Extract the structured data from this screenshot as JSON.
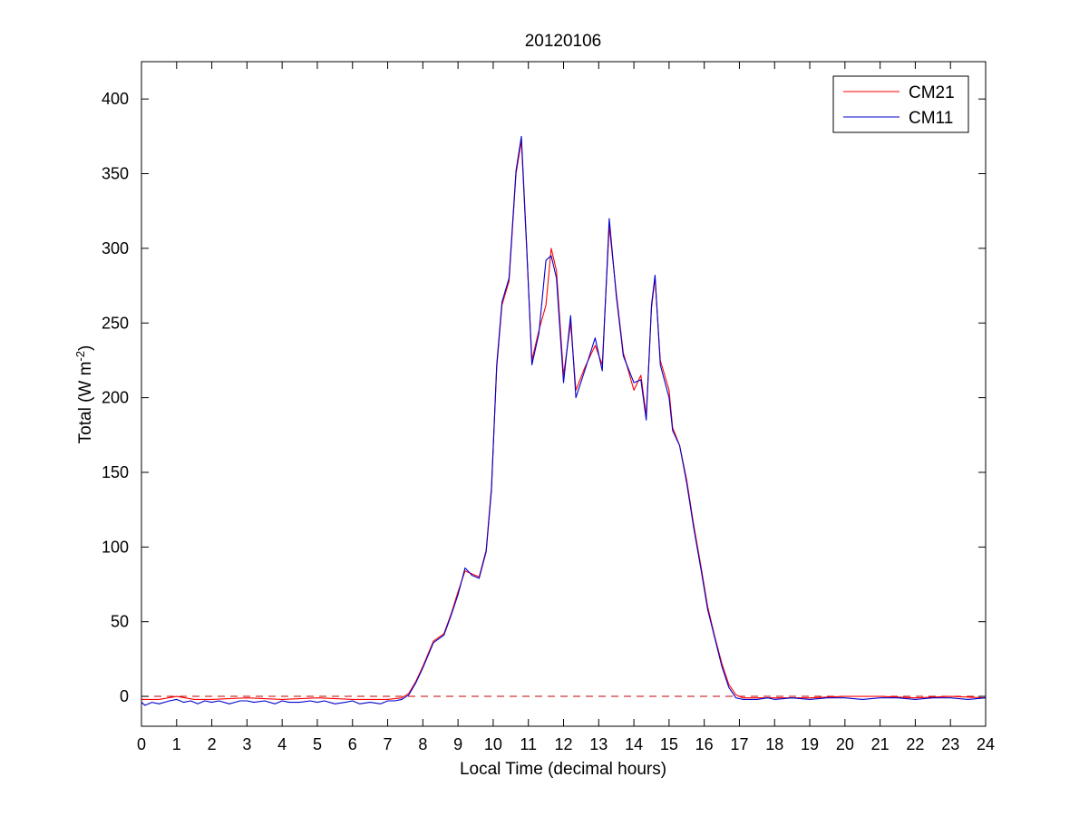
{
  "chart_data": {
    "type": "line",
    "title": "20120106",
    "xlabel": "Local Time (decimal hours)",
    "ylabel": {
      "text": "Total (W m",
      "sup": "-2",
      "close": ")"
    },
    "xlim": [
      0,
      24
    ],
    "ylim": [
      -20,
      425
    ],
    "xticks": [
      0,
      1,
      2,
      3,
      4,
      5,
      6,
      7,
      8,
      9,
      10,
      11,
      12,
      13,
      14,
      15,
      16,
      17,
      18,
      19,
      20,
      21,
      22,
      23,
      24
    ],
    "yticks": [
      0,
      50,
      100,
      150,
      200,
      250,
      300,
      350,
      400
    ],
    "grid": false,
    "legend_position": "top-right",
    "reference_line": {
      "y": 0,
      "style": "dashed",
      "color": "#c00000"
    },
    "series": [
      {
        "name": "CM21",
        "color": "#ff0000",
        "points": [
          [
            0,
            -2
          ],
          [
            0.5,
            -2
          ],
          [
            1,
            0
          ],
          [
            1.5,
            -2
          ],
          [
            2,
            -2
          ],
          [
            3,
            -1
          ],
          [
            4,
            -2
          ],
          [
            5,
            -1
          ],
          [
            6,
            -2
          ],
          [
            7,
            -2
          ],
          [
            7.4,
            -1
          ],
          [
            7.6,
            2
          ],
          [
            7.8,
            10
          ],
          [
            8,
            20
          ],
          [
            8.3,
            37
          ],
          [
            8.6,
            42
          ],
          [
            8.8,
            55
          ],
          [
            9,
            70
          ],
          [
            9.2,
            84
          ],
          [
            9.4,
            82
          ],
          [
            9.6,
            80
          ],
          [
            9.8,
            98
          ],
          [
            9.95,
            140
          ],
          [
            10.1,
            220
          ],
          [
            10.25,
            262
          ],
          [
            10.45,
            278
          ],
          [
            10.65,
            350
          ],
          [
            10.8,
            372
          ],
          [
            10.95,
            300
          ],
          [
            11.1,
            225
          ],
          [
            11.3,
            245
          ],
          [
            11.5,
            262
          ],
          [
            11.65,
            300
          ],
          [
            11.8,
            285
          ],
          [
            12,
            215
          ],
          [
            12.2,
            250
          ],
          [
            12.35,
            205
          ],
          [
            12.6,
            220
          ],
          [
            12.9,
            235
          ],
          [
            13.1,
            222
          ],
          [
            13.3,
            315
          ],
          [
            13.5,
            270
          ],
          [
            13.7,
            230
          ],
          [
            14,
            205
          ],
          [
            14.2,
            215
          ],
          [
            14.35,
            188
          ],
          [
            14.5,
            260
          ],
          [
            14.6,
            280
          ],
          [
            14.75,
            225
          ],
          [
            15,
            205
          ],
          [
            15.1,
            180
          ],
          [
            15.3,
            168
          ],
          [
            15.5,
            145
          ],
          [
            15.7,
            115
          ],
          [
            15.9,
            88
          ],
          [
            16.1,
            60
          ],
          [
            16.3,
            40
          ],
          [
            16.5,
            22
          ],
          [
            16.7,
            8
          ],
          [
            16.9,
            1
          ],
          [
            17.1,
            -1
          ],
          [
            17.5,
            -1
          ],
          [
            18,
            -1
          ],
          [
            19,
            -1
          ],
          [
            20,
            0
          ],
          [
            21,
            0
          ],
          [
            22,
            -1
          ],
          [
            23,
            0
          ],
          [
            24,
            -1
          ]
        ]
      },
      {
        "name": "CM11",
        "color": "#0000cc",
        "points": [
          [
            0,
            -4
          ],
          [
            0.1,
            -6
          ],
          [
            0.3,
            -4
          ],
          [
            0.5,
            -5
          ],
          [
            0.8,
            -3
          ],
          [
            1,
            -2
          ],
          [
            1.2,
            -4
          ],
          [
            1.4,
            -3
          ],
          [
            1.6,
            -5
          ],
          [
            1.8,
            -3
          ],
          [
            2,
            -4
          ],
          [
            2.2,
            -3
          ],
          [
            2.5,
            -5
          ],
          [
            2.8,
            -3
          ],
          [
            3,
            -3
          ],
          [
            3.2,
            -4
          ],
          [
            3.5,
            -3
          ],
          [
            3.8,
            -5
          ],
          [
            4,
            -3
          ],
          [
            4.2,
            -4
          ],
          [
            4.5,
            -4
          ],
          [
            4.8,
            -3
          ],
          [
            5,
            -4
          ],
          [
            5.2,
            -3
          ],
          [
            5.5,
            -5
          ],
          [
            5.8,
            -4
          ],
          [
            6,
            -3
          ],
          [
            6.2,
            -5
          ],
          [
            6.5,
            -4
          ],
          [
            6.8,
            -5
          ],
          [
            7,
            -3
          ],
          [
            7.2,
            -3
          ],
          [
            7.4,
            -2
          ],
          [
            7.6,
            1
          ],
          [
            7.8,
            9
          ],
          [
            8,
            19
          ],
          [
            8.3,
            36
          ],
          [
            8.6,
            41
          ],
          [
            8.8,
            54
          ],
          [
            9,
            68
          ],
          [
            9.2,
            86
          ],
          [
            9.4,
            81
          ],
          [
            9.6,
            79
          ],
          [
            9.8,
            97
          ],
          [
            9.95,
            138
          ],
          [
            10.1,
            222
          ],
          [
            10.25,
            264
          ],
          [
            10.45,
            280
          ],
          [
            10.65,
            352
          ],
          [
            10.8,
            375
          ],
          [
            10.95,
            302
          ],
          [
            11.1,
            222
          ],
          [
            11.3,
            243
          ],
          [
            11.5,
            292
          ],
          [
            11.65,
            295
          ],
          [
            11.8,
            280
          ],
          [
            12,
            210
          ],
          [
            12.2,
            255
          ],
          [
            12.35,
            200
          ],
          [
            12.6,
            218
          ],
          [
            12.9,
            240
          ],
          [
            13.1,
            218
          ],
          [
            13.3,
            320
          ],
          [
            13.5,
            268
          ],
          [
            13.7,
            228
          ],
          [
            14,
            210
          ],
          [
            14.2,
            212
          ],
          [
            14.35,
            185
          ],
          [
            14.5,
            262
          ],
          [
            14.6,
            282
          ],
          [
            14.75,
            222
          ],
          [
            15,
            200
          ],
          [
            15.1,
            178
          ],
          [
            15.3,
            168
          ],
          [
            15.5,
            143
          ],
          [
            15.7,
            113
          ],
          [
            15.9,
            86
          ],
          [
            16.1,
            58
          ],
          [
            16.3,
            39
          ],
          [
            16.5,
            20
          ],
          [
            16.7,
            6
          ],
          [
            16.9,
            -1
          ],
          [
            17.1,
            -2
          ],
          [
            17.5,
            -2
          ],
          [
            17.8,
            -1
          ],
          [
            18,
            -2
          ],
          [
            18.5,
            -1
          ],
          [
            19,
            -2
          ],
          [
            19.5,
            -1
          ],
          [
            20,
            -1
          ],
          [
            20.5,
            -2
          ],
          [
            21,
            -1
          ],
          [
            21.5,
            -1
          ],
          [
            22,
            -2
          ],
          [
            22.5,
            -1
          ],
          [
            23,
            -1
          ],
          [
            23.5,
            -2
          ],
          [
            24,
            -1
          ]
        ]
      }
    ]
  }
}
